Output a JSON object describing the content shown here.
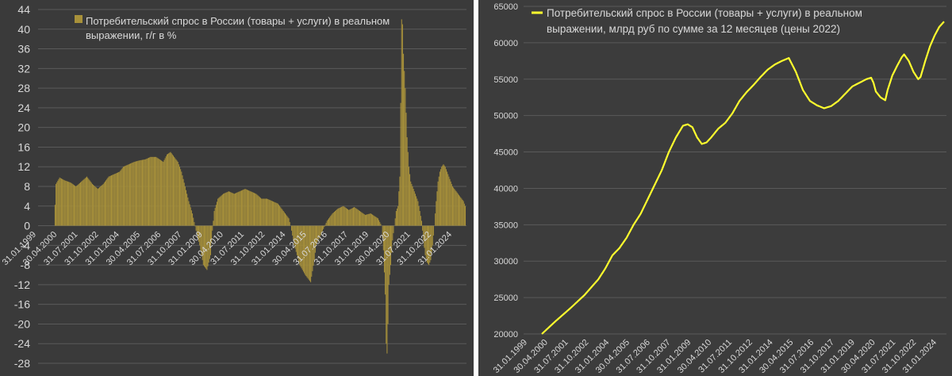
{
  "colors": {
    "left_bars": "#a8913a",
    "right_line": "#ffff2e",
    "panel_bg": "#3a3a3a",
    "grid": "#5a5a5a",
    "text": "#d8d8d8"
  },
  "left_chart": {
    "legend_line1": "Потребительский спрос в России (товары + услуги) в реальном",
    "legend_line2": "выражении, г/г в %"
  },
  "right_chart": {
    "legend_line1": "Потребительский спрос в России (товары + услуги) в реальном",
    "legend_line2": "выражении, млрд руб по сумме за 12 месяцев (цены 2022)"
  },
  "chart_data": [
    {
      "type": "bar",
      "series": [
        {
          "name": "Потребительский спрос в России (товары + услуги) в реальном выражении, г/г в %"
        }
      ],
      "ylim": [
        -28,
        44
      ],
      "yticks": [
        "44",
        "40",
        "36",
        "32",
        "28",
        "24",
        "20",
        "16",
        "12",
        "8",
        "4",
        "0",
        "-4",
        "-8",
        "-12",
        "-16",
        "-20",
        "-24",
        "-28"
      ],
      "xticks": [
        "31.01.1999",
        "30.04.2000",
        "31.07.2001",
        "31.10.2002",
        "31.01.2004",
        "30.04.2005",
        "31.07.2006",
        "31.10.2007",
        "31.01.2009",
        "30.04.2010",
        "31.07.2011",
        "31.10.2012",
        "31.01.2014",
        "30.04.2015",
        "31.07.2016",
        "31.10.2017",
        "31.01.2019",
        "30.04.2020",
        "31.07.2021",
        "31.10.2022",
        "31.01.2024"
      ],
      "x_start": "1999-01",
      "keypoints": [
        [
          0,
          0
        ],
        [
          12,
          0
        ],
        [
          14,
          8.5
        ],
        [
          18,
          9.8
        ],
        [
          24,
          9.2
        ],
        [
          30,
          8.8
        ],
        [
          36,
          8
        ],
        [
          42,
          9
        ],
        [
          48,
          10
        ],
        [
          54,
          8.5
        ],
        [
          60,
          7.5
        ],
        [
          66,
          8.5
        ],
        [
          72,
          10
        ],
        [
          78,
          10.5
        ],
        [
          84,
          11
        ],
        [
          88,
          12
        ],
        [
          94,
          12.5
        ],
        [
          100,
          13
        ],
        [
          106,
          13.3
        ],
        [
          112,
          13.5
        ],
        [
          118,
          14
        ],
        [
          124,
          14
        ],
        [
          128,
          13.5
        ],
        [
          132,
          13
        ],
        [
          136,
          14.5
        ],
        [
          140,
          15
        ],
        [
          144,
          14
        ],
        [
          148,
          13
        ],
        [
          152,
          11
        ],
        [
          156,
          8
        ],
        [
          160,
          5
        ],
        [
          164,
          2.5
        ],
        [
          168,
          -1
        ],
        [
          172,
          -4
        ],
        [
          176,
          -8
        ],
        [
          180,
          -9
        ],
        [
          184,
          -6
        ],
        [
          186,
          -1
        ],
        [
          188,
          3
        ],
        [
          192,
          5.5
        ],
        [
          198,
          6.5
        ],
        [
          204,
          7
        ],
        [
          210,
          6.5
        ],
        [
          216,
          7
        ],
        [
          222,
          7.5
        ],
        [
          228,
          7
        ],
        [
          234,
          6.5
        ],
        [
          240,
          5.5
        ],
        [
          246,
          5.5
        ],
        [
          252,
          5
        ],
        [
          258,
          4.5
        ],
        [
          264,
          3
        ],
        [
          270,
          1.5
        ],
        [
          272,
          0
        ],
        [
          276,
          -4
        ],
        [
          282,
          -8
        ],
        [
          288,
          -10
        ],
        [
          294,
          -11.5
        ],
        [
          298,
          -7
        ],
        [
          300,
          -4
        ],
        [
          306,
          -1.5
        ],
        [
          312,
          1
        ],
        [
          318,
          2.5
        ],
        [
          324,
          3.5
        ],
        [
          330,
          4
        ],
        [
          336,
          3.2
        ],
        [
          342,
          3.8
        ],
        [
          348,
          3
        ],
        [
          354,
          2.2
        ],
        [
          360,
          2.5
        ],
        [
          364,
          2
        ],
        [
          368,
          1.5
        ],
        [
          372,
          0
        ],
        [
          374,
          -5
        ],
        [
          376,
          -14
        ],
        [
          377,
          -24
        ],
        [
          378,
          -26
        ],
        [
          379,
          -20
        ],
        [
          380,
          -12
        ],
        [
          382,
          -8
        ],
        [
          384,
          -3
        ],
        [
          386,
          0
        ],
        [
          388,
          3
        ],
        [
          390,
          4
        ],
        [
          392,
          10
        ],
        [
          393,
          25
        ],
        [
          394,
          42
        ],
        [
          395,
          41
        ],
        [
          396,
          35
        ],
        [
          398,
          28
        ],
        [
          400,
          18
        ],
        [
          402,
          12
        ],
        [
          404,
          9
        ],
        [
          406,
          8
        ],
        [
          408,
          7
        ],
        [
          410,
          6
        ],
        [
          412,
          5
        ],
        [
          414,
          3
        ],
        [
          416,
          1
        ],
        [
          418,
          -3
        ],
        [
          420,
          -6
        ],
        [
          422,
          -7.5
        ],
        [
          424,
          -8
        ],
        [
          426,
          -7
        ],
        [
          428,
          -4
        ],
        [
          430,
          0
        ],
        [
          432,
          5
        ],
        [
          434,
          9
        ],
        [
          436,
          11
        ],
        [
          438,
          12
        ],
        [
          440,
          12.5
        ],
        [
          442,
          12
        ],
        [
          446,
          10
        ],
        [
          450,
          8
        ],
        [
          454,
          7
        ],
        [
          458,
          6
        ],
        [
          462,
          5
        ],
        [
          464,
          4
        ]
      ]
    },
    {
      "type": "line",
      "series": [
        {
          "name": "Потребительский спрос в России (товары + услуги) в реальном выражении, млрд руб по сумме за 12 месяцев (цены 2022)"
        }
      ],
      "ylim": [
        20000,
        65000
      ],
      "yticks": [
        "65000",
        "60000",
        "55000",
        "50000",
        "45000",
        "40000",
        "35000",
        "30000",
        "25000",
        "20000"
      ],
      "xticks": [
        "31.01.1999",
        "30.04.2000",
        "31.07.2001",
        "31.10.2002",
        "31.01.2004",
        "30.04.2005",
        "31.07.2006",
        "31.10.2007",
        "31.01.2009",
        "30.04.2010",
        "31.07.2011",
        "31.10.2012",
        "31.01.2014",
        "30.04.2015",
        "31.07.2016",
        "31.10.2017",
        "31.01.2019",
        "30.04.2020",
        "31.07.2021",
        "31.10.2022",
        "31.01.2024"
      ],
      "x_start": "1999-01",
      "keypoints": [
        [
          12,
          20000
        ],
        [
          24,
          21800
        ],
        [
          36,
          23500
        ],
        [
          48,
          25300
        ],
        [
          60,
          27500
        ],
        [
          66,
          29000
        ],
        [
          72,
          30800
        ],
        [
          78,
          31800
        ],
        [
          84,
          33200
        ],
        [
          90,
          35000
        ],
        [
          96,
          36500
        ],
        [
          102,
          38500
        ],
        [
          108,
          40500
        ],
        [
          114,
          42500
        ],
        [
          120,
          45000
        ],
        [
          126,
          47000
        ],
        [
          132,
          48600
        ],
        [
          136,
          48800
        ],
        [
          140,
          48400
        ],
        [
          144,
          47000
        ],
        [
          148,
          46100
        ],
        [
          152,
          46300
        ],
        [
          156,
          47000
        ],
        [
          162,
          48200
        ],
        [
          168,
          49000
        ],
        [
          174,
          50300
        ],
        [
          180,
          52000
        ],
        [
          186,
          53200
        ],
        [
          192,
          54200
        ],
        [
          198,
          55300
        ],
        [
          204,
          56300
        ],
        [
          210,
          57000
        ],
        [
          216,
          57500
        ],
        [
          222,
          57900
        ],
        [
          228,
          56000
        ],
        [
          234,
          53500
        ],
        [
          240,
          52000
        ],
        [
          246,
          51400
        ],
        [
          252,
          51000
        ],
        [
          258,
          51300
        ],
        [
          264,
          52000
        ],
        [
          270,
          53000
        ],
        [
          276,
          54000
        ],
        [
          282,
          54500
        ],
        [
          288,
          55000
        ],
        [
          292,
          55200
        ],
        [
          294,
          54500
        ],
        [
          296,
          53300
        ],
        [
          300,
          52500
        ],
        [
          304,
          52100
        ],
        [
          306,
          53500
        ],
        [
          310,
          55500
        ],
        [
          314,
          56800
        ],
        [
          318,
          58000
        ],
        [
          320,
          58400
        ],
        [
          324,
          57500
        ],
        [
          328,
          56000
        ],
        [
          332,
          55000
        ],
        [
          334,
          55300
        ],
        [
          338,
          57500
        ],
        [
          342,
          59500
        ],
        [
          346,
          61000
        ],
        [
          350,
          62200
        ],
        [
          354,
          62900
        ]
      ]
    }
  ]
}
